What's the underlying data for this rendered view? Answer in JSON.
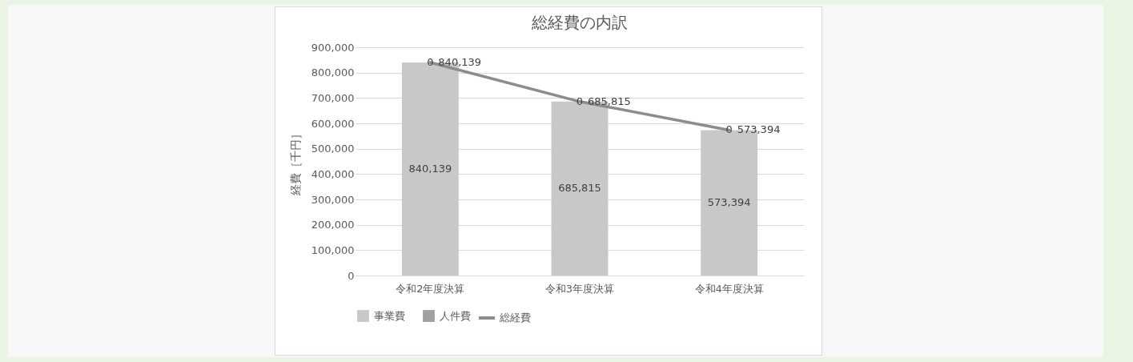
{
  "chart_data": {
    "type": "bar",
    "title": "総経費の内訳",
    "ylabel": "経費［千円］",
    "categories": [
      "令和2年度決算",
      "令和3年度決算",
      "令和4年度決算"
    ],
    "stacked": true,
    "series": [
      {
        "name": "事業費",
        "color": "#c8c8c8",
        "values": [
          840139,
          685815,
          573394
        ],
        "value_labels": [
          "840,139",
          "685,815",
          "573,394"
        ]
      },
      {
        "name": "人件費",
        "color": "#a0a0a0",
        "values": [
          0,
          0,
          0
        ],
        "value_labels": [
          "0",
          "0",
          "0"
        ]
      },
      {
        "name": "総経費",
        "type": "line",
        "color": "#8c8c8c",
        "values": [
          840139,
          685815,
          573394
        ],
        "value_labels": [
          "840,139",
          "685,815",
          "573,394"
        ]
      }
    ],
    "ylim": [
      0,
      900000
    ],
    "yticks": [
      0,
      {
        "value": 100000,
        "label": "100,000"
      },
      {
        "value": 200000,
        "label": "200,000"
      },
      {
        "value": 300000,
        "label": "300,000"
      },
      {
        "value": 400000,
        "label": "400,000"
      },
      {
        "value": 500000,
        "label": "500,000"
      },
      {
        "value": 600000,
        "label": "600,000"
      },
      {
        "value": 700000,
        "label": "700,000"
      },
      {
        "value": 800000,
        "label": "800,000"
      },
      {
        "value": 900000,
        "label": "900,000"
      }
    ],
    "grid": "y",
    "legend": "bottom"
  }
}
